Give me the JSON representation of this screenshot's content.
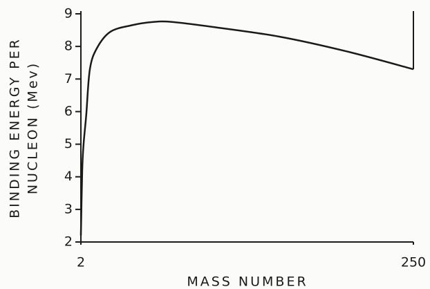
{
  "chart_data": {
    "type": "line",
    "xlabel": "MASS NUMBER",
    "ylabel": [
      "BINDING ENERGY PER",
      "NUCLEON (Mev)"
    ],
    "x": [
      2,
      3,
      4,
      6,
      8.7,
      14,
      24,
      40,
      56,
      70,
      100,
      150,
      200,
      250
    ],
    "series": [
      {
        "color": "#1a1a1a",
        "values": [
          2.2,
          4.2,
          5.0,
          5.9,
          7.3,
          7.95,
          8.45,
          8.65,
          8.75,
          8.75,
          8.6,
          8.3,
          7.85,
          7.3
        ]
      }
    ],
    "xlim": [
      2,
      250
    ],
    "xticks": [
      2,
      250
    ],
    "ylim": [
      2,
      9
    ],
    "yticks": [
      2,
      3,
      4,
      5,
      6,
      7,
      8,
      9
    ],
    "grid": false
  }
}
